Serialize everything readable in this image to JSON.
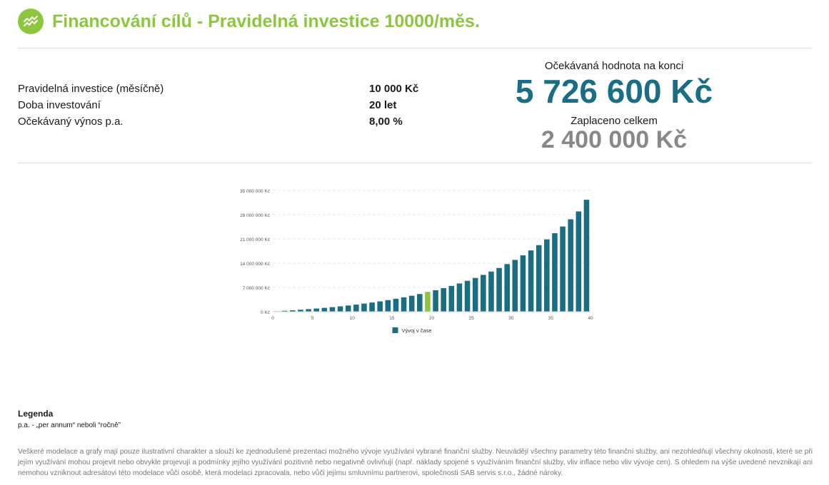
{
  "header": {
    "title": "Financování cílů - Pravidelná investice 10000/měs.",
    "logo_icon": "growth-chart-icon",
    "accent_color": "#8cc63f"
  },
  "params": [
    {
      "label": "Pravidelná investice (měsíčně)",
      "value": "10 000 Kč"
    },
    {
      "label": "Doba investování",
      "value": "20 let"
    },
    {
      "label": "Očekávaný výnos p.a.",
      "value": "8,00 %"
    }
  ],
  "summary": {
    "expected_label": "Očekávaná hodnota na konci",
    "expected_value": "5 726 600 Kč",
    "paid_label": "Zaplaceno celkem",
    "paid_value": "2 400 000 Kč",
    "expected_color": "#1a6e83",
    "paid_color": "#888888"
  },
  "chart_data": {
    "type": "bar",
    "title": "",
    "xlabel": "",
    "ylabel": "",
    "ylim": [
      0,
      35000000
    ],
    "yticks": [
      0,
      7000000,
      14000000,
      21000000,
      28000000,
      35000000
    ],
    "ytick_labels": [
      "0 Kč",
      "7 000 000 Kč",
      "14 000 000 Kč",
      "21 000 000 Kč",
      "28 000 000 Kč",
      "35 000 000 Kč"
    ],
    "xticks": [
      0,
      5,
      10,
      15,
      20,
      25,
      30,
      35,
      40
    ],
    "x": [
      1,
      2,
      3,
      4,
      5,
      6,
      7,
      8,
      9,
      10,
      11,
      12,
      13,
      14,
      15,
      16,
      17,
      18,
      19,
      20,
      21,
      22,
      23,
      24,
      25,
      26,
      27,
      28,
      29,
      30,
      31,
      32,
      33,
      34,
      35,
      36,
      37,
      38,
      39,
      40
    ],
    "values": [
      125000,
      260000,
      405000,
      560000,
      730000,
      910000,
      1105000,
      1315000,
      1545000,
      1790000,
      2050000,
      2340000,
      2650000,
      2980000,
      3340000,
      3730000,
      4150000,
      4600000,
      5090000,
      5726600,
      6190000,
      6790000,
      7450000,
      8150000,
      8910000,
      9730000,
      10620000,
      11580000,
      12620000,
      13740000,
      14950000,
      16260000,
      17680000,
      19210000,
      20870000,
      22660000,
      24590000,
      26680000,
      28940000,
      32300000
    ],
    "highlight_x": 20,
    "series_name": "Vývoj v čase",
    "bar_color": "#1a6e83",
    "highlight_color": "#8cc63f",
    "grid": true,
    "legend_position": "bottom-center"
  },
  "legend": {
    "title": "Legenda",
    "text": "p.a. - „per annum“ neboli “ročně”"
  },
  "disclaimer": "Veškeré modelace a grafy mají pouze ilustrativní charakter a slouží ke zjednodušené prezentaci možného vývoje využívání vybrané finanční služby. Neuvádějí všechny parametry této finanční služby, ani nezohledňují všechny okolnosti, které se při jejím využívání mohou projevit nebo obvykle projevují a podmínky jejího využívání pozitivně nebo negativně ovlivňují (např. náklady spojené s využíváním finanční služby, vliv inflace nebo vliv vývoje cen). S ohledem na výše uvedené nevznikají ani nemohou vzniknout adresátovi této modelace vůči osobě, která modelaci zpracovala, nebo vůči jejímu smluvnímu partnerovi, společnosti SAB servis s.r.o., žádné nároky."
}
